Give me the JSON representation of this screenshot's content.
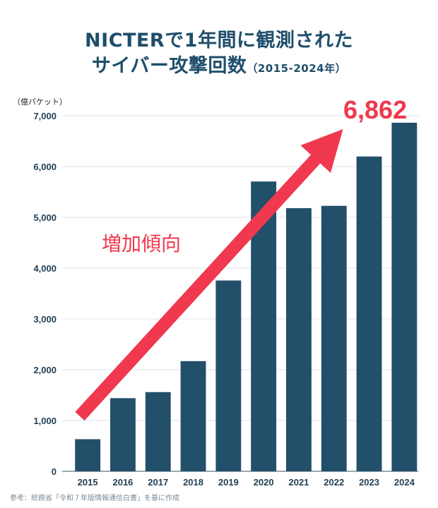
{
  "title": {
    "line1": "NICTERで1年間に観測された",
    "line2": "サイバー攻撃回数",
    "line2_sub": "（2015-2024年）"
  },
  "source": "参考：総務省「令和７年版情報通信白書」を基に作成",
  "colors": {
    "bar": "#224f6a",
    "accent": "#f0394e",
    "grid": "#dde3e8"
  },
  "chart_data": {
    "type": "bar",
    "categories": [
      "2015",
      "2016",
      "2017",
      "2018",
      "2019",
      "2020",
      "2021",
      "2022",
      "2023",
      "2024"
    ],
    "values": [
      632,
      1440,
      1559,
      2169,
      3756,
      5705,
      5180,
      5226,
      6197,
      6862
    ],
    "ylabel": "（億パケット）",
    "ylim": [
      0,
      7000
    ],
    "yticks": [
      0,
      1000,
      2000,
      3000,
      4000,
      5000,
      6000,
      7000
    ],
    "ytick_labels": [
      "0",
      "1,000",
      "2,000",
      "3,000",
      "4,000",
      "5,000",
      "6,000",
      "7,000"
    ],
    "grid": true,
    "annotations": {
      "callout_value": "6,862",
      "trend_label": "増加傾向"
    }
  }
}
